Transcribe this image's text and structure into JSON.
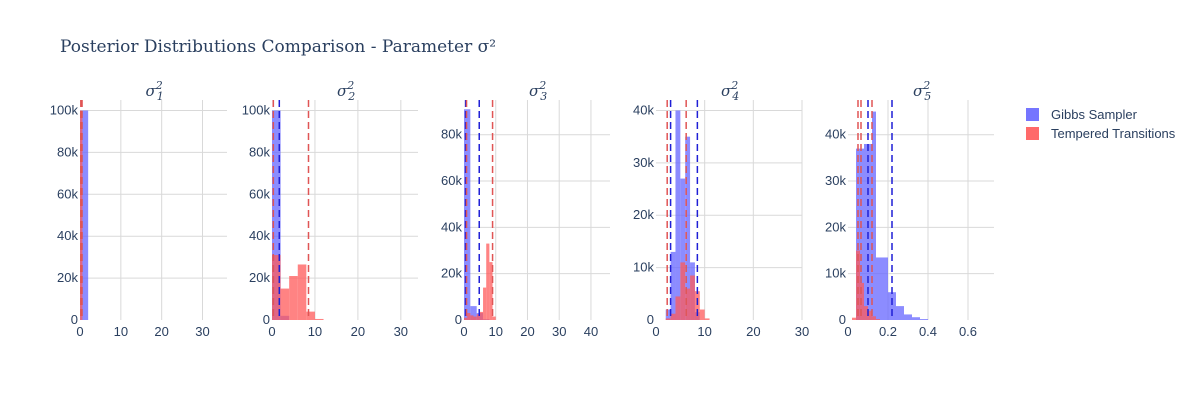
{
  "chart_data": {
    "type": "histogram",
    "title": "Posterior Distributions Comparison - Parameter σ²",
    "legend": {
      "placement": "top-right",
      "entries": [
        {
          "name": "Gibbs Sampler",
          "color": "#6666ff"
        },
        {
          "name": "Tempered Transitions",
          "color": "#ff5a5a"
        }
      ]
    },
    "panels": [
      {
        "subtitle_base": "σ",
        "subtitle_sub": "1",
        "subtitle_sup": "2",
        "xlim": [
          0,
          36
        ],
        "ylim": [
          0,
          105000
        ],
        "xticks": [
          0,
          10,
          20,
          30
        ],
        "xtick_labels": [
          "0",
          "10",
          "20",
          "30"
        ],
        "yticks": [
          0,
          20000,
          40000,
          60000,
          80000,
          100000
        ],
        "ytick_labels": [
          "0",
          "20k",
          "40k",
          "60k",
          "80k",
          "100k"
        ],
        "series": [
          {
            "name": "Gibbs Sampler",
            "bins": [
              [
                0,
                2,
                100000
              ]
            ],
            "vlines": []
          },
          {
            "name": "Tempered Transitions",
            "bins": [
              [
                0,
                0.6,
                100000
              ]
            ],
            "vlines": [
              0.2,
              0.5
            ]
          }
        ]
      },
      {
        "subtitle_base": "σ",
        "subtitle_sub": "2",
        "subtitle_sup": "2",
        "xlim": [
          0,
          34
        ],
        "ylim": [
          0,
          105000
        ],
        "xticks": [
          0,
          10,
          20,
          30
        ],
        "xtick_labels": [
          "0",
          "10",
          "20",
          "30"
        ],
        "yticks": [
          0,
          20000,
          40000,
          60000,
          80000,
          100000
        ],
        "ytick_labels": [
          "0",
          "20k",
          "40k",
          "60k",
          "80k",
          "100k"
        ],
        "series": [
          {
            "name": "Gibbs Sampler",
            "bins": [
              [
                0,
                2,
                100000
              ],
              [
                2,
                4,
                2000
              ]
            ],
            "vlines": [
              0.3,
              1.7
            ]
          },
          {
            "name": "Tempered Transitions",
            "bins": [
              [
                0,
                2,
                31000
              ],
              [
                2,
                4,
                15000
              ],
              [
                4,
                6,
                21000
              ],
              [
                6,
                8,
                26500
              ],
              [
                8,
                10,
                4000
              ],
              [
                10,
                12,
                500
              ]
            ],
            "vlines": [
              0.3,
              8.5
            ]
          }
        ]
      },
      {
        "subtitle_base": "σ",
        "subtitle_sub": "3",
        "subtitle_sup": "2",
        "xlim": [
          0,
          46
        ],
        "ylim": [
          0,
          95000
        ],
        "xticks": [
          0,
          10,
          20,
          30,
          40
        ],
        "xtick_labels": [
          "0",
          "10",
          "20",
          "30",
          "40"
        ],
        "yticks": [
          0,
          20000,
          40000,
          60000,
          80000
        ],
        "ytick_labels": [
          "0",
          "20k",
          "40k",
          "60k",
          "80k"
        ],
        "series": [
          {
            "name": "Gibbs Sampler",
            "bins": [
              [
                0,
                2,
                91000
              ],
              [
                2,
                4,
                6000
              ],
              [
                4,
                6,
                3000
              ],
              [
                6,
                8,
                300
              ]
            ],
            "vlines": [
              0.5,
              4.8
            ]
          },
          {
            "name": "Tempered Transitions",
            "bins": [
              [
                0,
                1,
                1000
              ],
              [
                1,
                2,
                3000
              ],
              [
                2,
                3,
                2000
              ],
              [
                3,
                4,
                1500
              ],
              [
                4,
                5,
                2500
              ],
              [
                5,
                6,
                3500
              ],
              [
                6,
                7,
                14000
              ],
              [
                7,
                8,
                33000
              ],
              [
                8,
                9,
                25000
              ],
              [
                9,
                10,
                1500
              ]
            ],
            "vlines": [
              0.8,
              9.0
            ]
          }
        ]
      },
      {
        "subtitle_base": "σ",
        "subtitle_sub": "4",
        "subtitle_sup": "2",
        "xlim": [
          0,
          30
        ],
        "ylim": [
          0,
          42000
        ],
        "xticks": [
          0,
          10,
          20,
          30
        ],
        "xtick_labels": [
          "0",
          "10",
          "20",
          "30"
        ],
        "yticks": [
          0,
          10000,
          20000,
          30000,
          40000
        ],
        "ytick_labels": [
          "0",
          "10k",
          "20k",
          "30k",
          "40k"
        ],
        "series": [
          {
            "name": "Gibbs Sampler",
            "bins": [
              [
                2,
                3,
                2000
              ],
              [
                3,
                4,
                13000
              ],
              [
                4,
                5,
                40000
              ],
              [
                5,
                6,
                27000
              ],
              [
                6,
                7,
                35000
              ],
              [
                7,
                8,
                11000
              ],
              [
                8,
                9,
                1500
              ]
            ],
            "vlines": [
              3.0,
              8.5
            ]
          },
          {
            "name": "Tempered Transitions",
            "bins": [
              [
                2,
                3,
                300
              ],
              [
                3,
                4,
                1200
              ],
              [
                4,
                5,
                4500
              ],
              [
                5,
                6,
                11000
              ],
              [
                6,
                7,
                6000
              ],
              [
                7,
                8,
                8500
              ],
              [
                8,
                9,
                5500
              ],
              [
                9,
                10,
                2000
              ],
              [
                10,
                11,
                300
              ]
            ],
            "vlines": [
              2.3,
              6.2
            ]
          }
        ]
      },
      {
        "subtitle_base": "σ",
        "subtitle_sub": "5",
        "subtitle_sup": "2",
        "xlim": [
          0,
          0.73
        ],
        "ylim": [
          0,
          47500
        ],
        "xticks": [
          0,
          0.2,
          0.4,
          0.6
        ],
        "xtick_labels": [
          "0",
          "0.2",
          "0.4",
          "0.6"
        ],
        "yticks": [
          0,
          10000,
          20000,
          30000,
          40000
        ],
        "ytick_labels": [
          "0",
          "10k",
          "20k",
          "30k",
          "40k"
        ],
        "series": [
          {
            "name": "Gibbs Sampler",
            "bins": [
              [
                0.04,
                0.08,
                37000
              ],
              [
                0.08,
                0.12,
                38000
              ],
              [
                0.12,
                0.14,
                45000
              ],
              [
                0.14,
                0.2,
                13500
              ],
              [
                0.2,
                0.24,
                6000
              ],
              [
                0.24,
                0.28,
                3000
              ],
              [
                0.28,
                0.32,
                1200
              ],
              [
                0.32,
                0.36,
                600
              ],
              [
                0.36,
                0.4,
                200
              ]
            ],
            "vlines": [
              0.1,
              0.22
            ]
          },
          {
            "name": "Tempered Transitions",
            "bins": [
              [
                0.02,
                0.04,
                500
              ],
              [
                0.04,
                0.06,
                15000
              ],
              [
                0.06,
                0.08,
                8000
              ],
              [
                0.08,
                0.1,
                3000
              ],
              [
                0.1,
                0.12,
                2000
              ],
              [
                0.12,
                0.14,
                800
              ],
              [
                0.14,
                0.16,
                200
              ]
            ],
            "vlines": [
              0.05,
              0.065,
              0.12
            ]
          }
        ]
      }
    ]
  }
}
